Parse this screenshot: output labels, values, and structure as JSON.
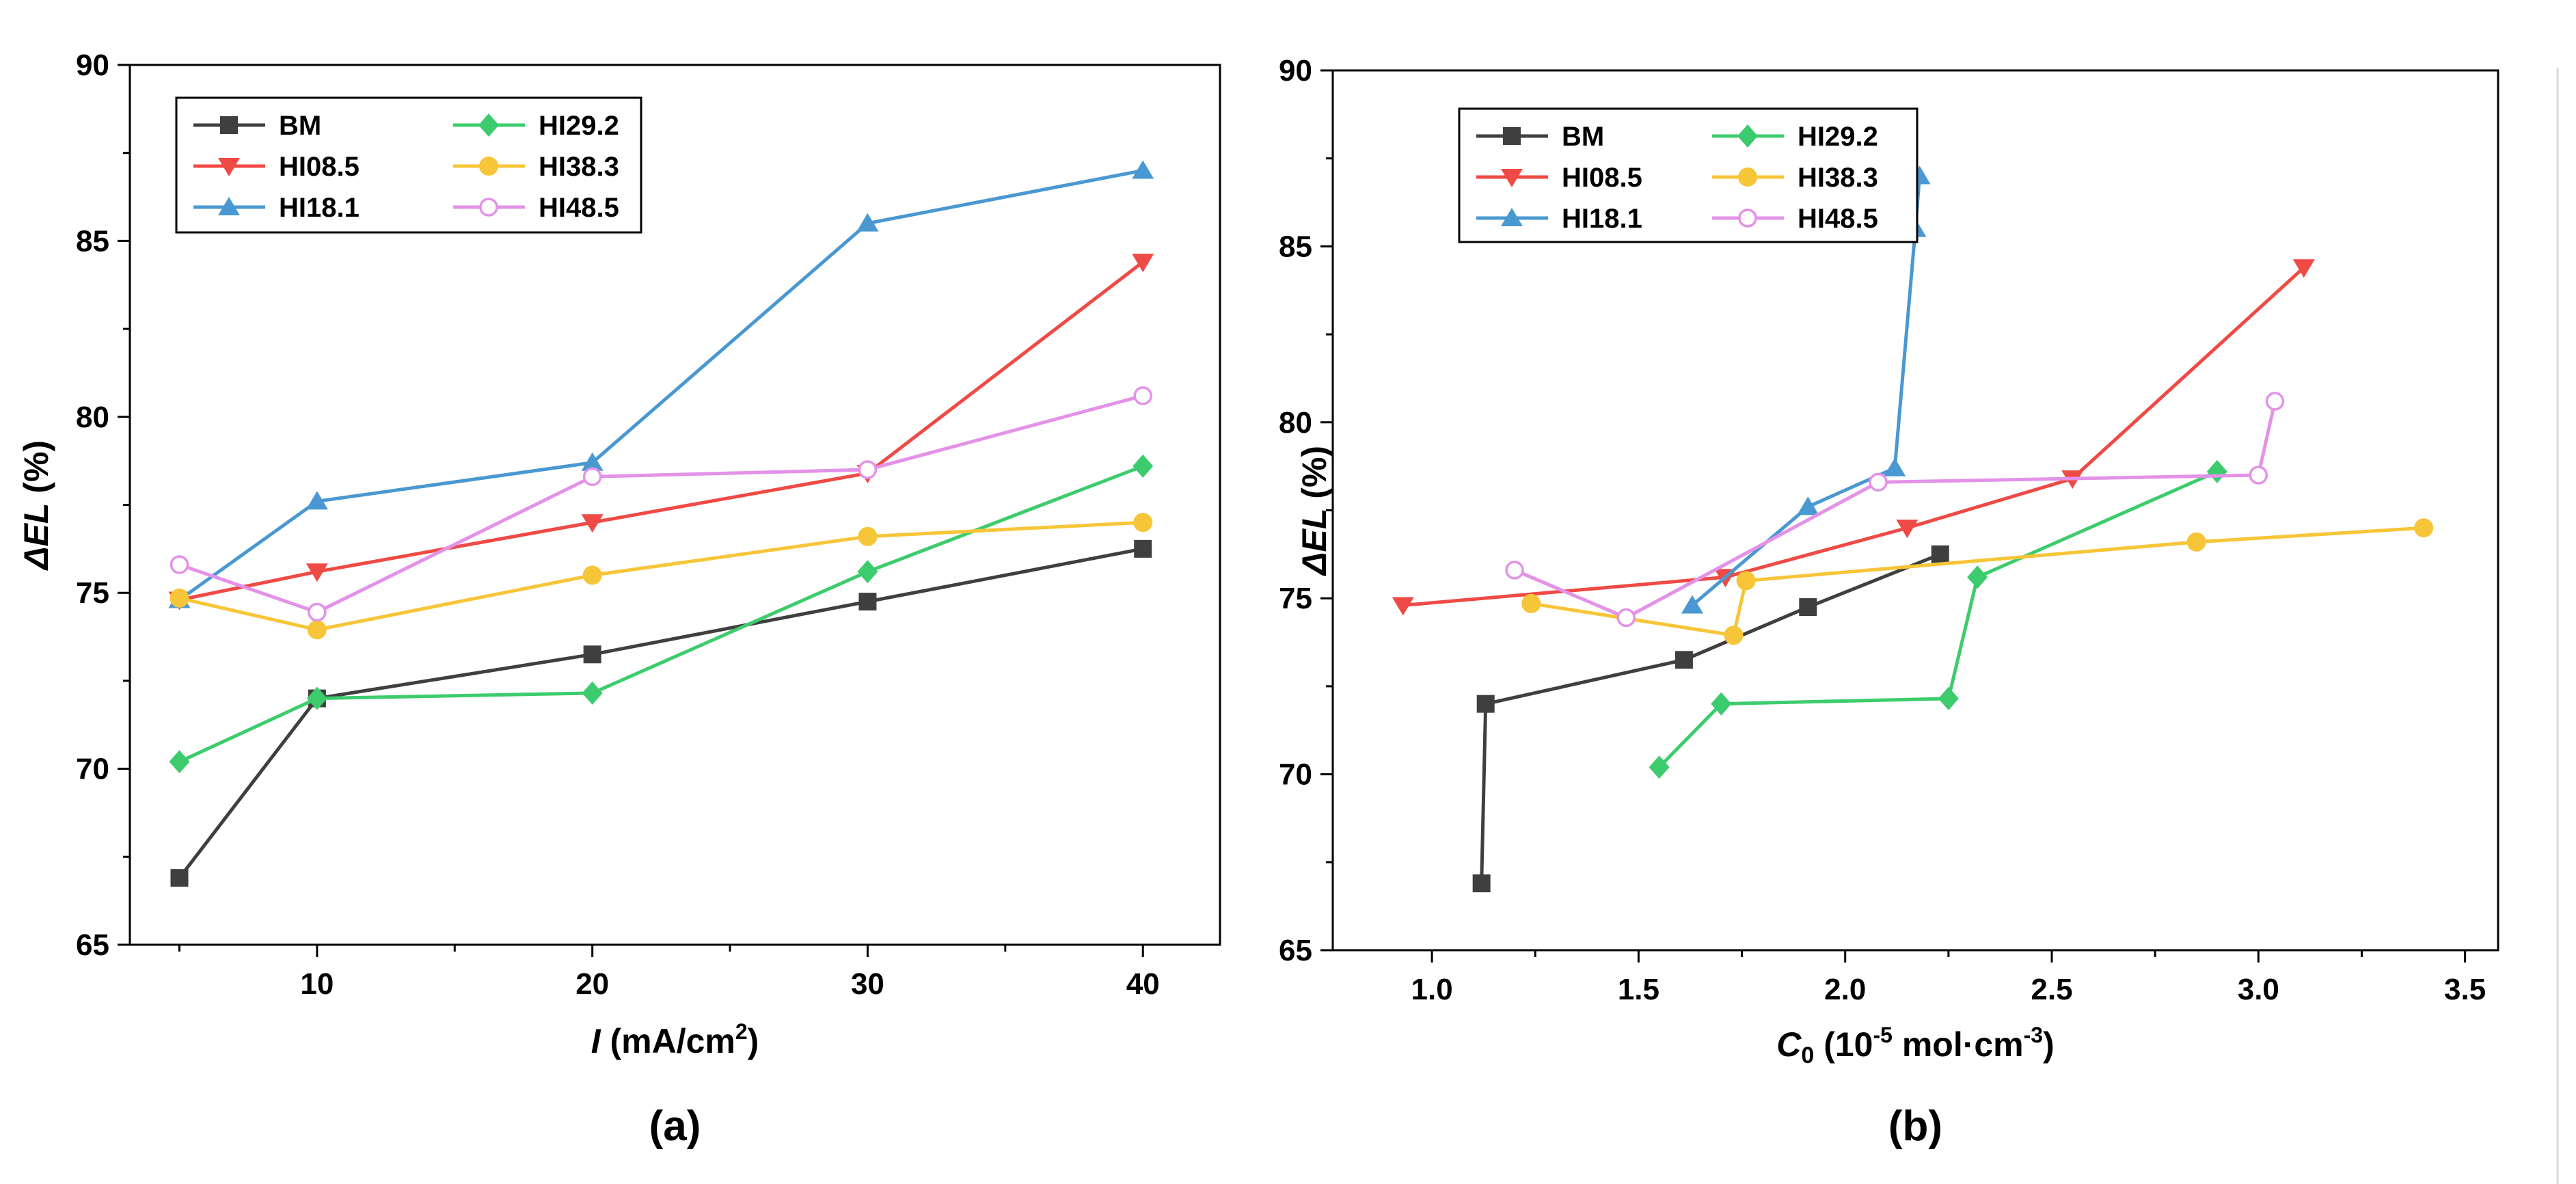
{
  "chart_data": [
    {
      "type": "line",
      "panel_label": "(a)",
      "xlabel": "I",
      "xlabel_unit": " (mA/cm",
      "xlabel_sup": "2",
      "xlabel_close": ")",
      "ylabel": "ΔEL",
      "ylabel_unit": " (%)",
      "xlim": [
        3.2,
        42.8
      ],
      "ylim": [
        65,
        90
      ],
      "xticks": [
        10,
        20,
        30,
        40
      ],
      "xtick_labels": [
        "10",
        "20",
        "30",
        "40"
      ],
      "yticks": [
        65,
        70,
        75,
        80,
        85,
        90
      ],
      "ytick_labels": [
        "65",
        "70",
        "75",
        "80",
        "85",
        "90"
      ],
      "legend_position": "top-left",
      "series": [
        {
          "name": "BM",
          "color": "#3f3f3f",
          "marker": "square",
          "x": [
            5,
            10,
            20,
            30,
            40
          ],
          "y": [
            66.9,
            72.0,
            73.25,
            74.75,
            76.25
          ]
        },
        {
          "name": "HI08.5",
          "color": "#ef4a45",
          "marker": "triangle-down",
          "x": [
            5,
            10,
            20,
            30,
            40
          ],
          "y": [
            74.8,
            75.6,
            77.0,
            78.4,
            84.4
          ]
        },
        {
          "name": "HI18.1",
          "color": "#4a98d1",
          "marker": "triangle-up",
          "x": [
            5,
            10,
            20,
            30,
            40
          ],
          "y": [
            74.8,
            77.6,
            78.7,
            85.5,
            87.0
          ]
        },
        {
          "name": "HI29.2",
          "color": "#3dcc6d",
          "marker": "diamond",
          "x": [
            5,
            10,
            20,
            30,
            40
          ],
          "y": [
            70.2,
            72.0,
            72.15,
            75.6,
            78.6
          ]
        },
        {
          "name": "HI38.3",
          "color": "#f7c538",
          "marker": "circle",
          "x": [
            5,
            10,
            20,
            30,
            40
          ],
          "y": [
            74.85,
            73.95,
            75.5,
            76.6,
            77.0
          ]
        },
        {
          "name": "HI48.5",
          "color": "#e392e8",
          "marker": "circle-open",
          "x": [
            5,
            10,
            20,
            30,
            40
          ],
          "y": [
            75.8,
            74.45,
            78.3,
            78.5,
            80.6
          ]
        }
      ]
    },
    {
      "type": "line",
      "panel_label": "(b)",
      "xlabel": "C",
      "xlabel_sub": "0",
      "xlabel_unit": " (10",
      "xlabel_sup1": "-5",
      "xlabel_unit2": " mol·cm",
      "xlabel_sup2": "-3",
      "xlabel_close": ")",
      "ylabel": "ΔEL",
      "ylabel_unit": " (%)",
      "xlim": [
        0.76,
        3.58
      ],
      "ylim": [
        65,
        90
      ],
      "xticks": [
        1.0,
        1.5,
        2.0,
        2.5,
        3.0,
        3.5
      ],
      "xtick_labels": [
        "1.0",
        "1.5",
        "2.0",
        "2.5",
        "3.0",
        "3.5"
      ],
      "yticks": [
        65,
        70,
        75,
        80,
        85,
        90
      ],
      "ytick_labels": [
        "65",
        "70",
        "75",
        "80",
        "85",
        "90"
      ],
      "legend_position": "top-left",
      "series": [
        {
          "name": "BM",
          "color": "#3f3f3f",
          "marker": "square",
          "x": [
            1.12,
            1.13,
            1.61,
            1.91,
            2.23
          ],
          "y": [
            66.9,
            72.0,
            73.25,
            74.75,
            76.25
          ]
        },
        {
          "name": "HI08.5",
          "color": "#ef4a45",
          "marker": "triangle-down",
          "x": [
            0.93,
            1.71,
            2.15,
            2.55,
            3.11
          ],
          "y": [
            74.8,
            75.6,
            77.0,
            78.4,
            84.4
          ]
        },
        {
          "name": "HI18.1",
          "color": "#4a98d1",
          "marker": "triangle-up",
          "x": [
            1.63,
            1.91,
            2.12,
            2.17,
            2.18
          ],
          "y": [
            74.8,
            77.6,
            78.7,
            85.5,
            87.0
          ]
        },
        {
          "name": "HI29.2",
          "color": "#3dcc6d",
          "marker": "diamond",
          "x": [
            1.55,
            1.7,
            2.25,
            2.32,
            2.9
          ],
          "y": [
            70.2,
            72.0,
            72.15,
            75.6,
            78.6
          ]
        },
        {
          "name": "HI38.3",
          "color": "#f7c538",
          "marker": "circle",
          "x": [
            1.24,
            1.73,
            1.76,
            2.85,
            3.4
          ],
          "y": [
            74.85,
            73.95,
            75.5,
            76.6,
            77.0
          ]
        },
        {
          "name": "HI48.5",
          "color": "#e392e8",
          "marker": "circle-open",
          "x": [
            1.2,
            1.47,
            2.08,
            3.0,
            3.04
          ],
          "y": [
            75.8,
            74.45,
            78.3,
            78.5,
            80.6
          ]
        }
      ]
    }
  ]
}
